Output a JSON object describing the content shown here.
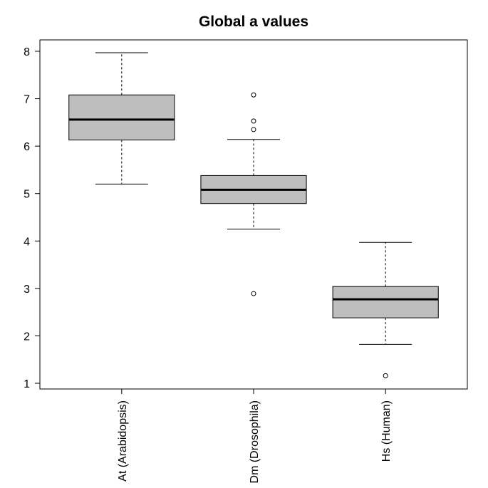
{
  "chart_data": {
    "type": "boxplot",
    "title": "Global a values",
    "categories": [
      "At (Arabidopsis)",
      "Dm (Drosophila)",
      "Hs (Human)"
    ],
    "color": "#bebebe",
    "boxes": [
      {
        "whisker_low": 5.2,
        "q1": 6.13,
        "median": 6.56,
        "q3": 7.08,
        "whisker_high": 7.97,
        "outliers": []
      },
      {
        "whisker_low": 4.25,
        "q1": 4.79,
        "median": 5.08,
        "q3": 5.38,
        "whisker_high": 6.14,
        "outliers": [
          7.08,
          6.53,
          6.35,
          2.89
        ]
      },
      {
        "whisker_low": 1.82,
        "q1": 2.38,
        "median": 2.77,
        "q3": 3.04,
        "whisker_high": 3.97,
        "outliers": [
          1.16
        ]
      }
    ],
    "ylim": [
      0.88,
      8.24
    ],
    "yticks": [
      1,
      2,
      3,
      4,
      5,
      6,
      7,
      8
    ]
  }
}
